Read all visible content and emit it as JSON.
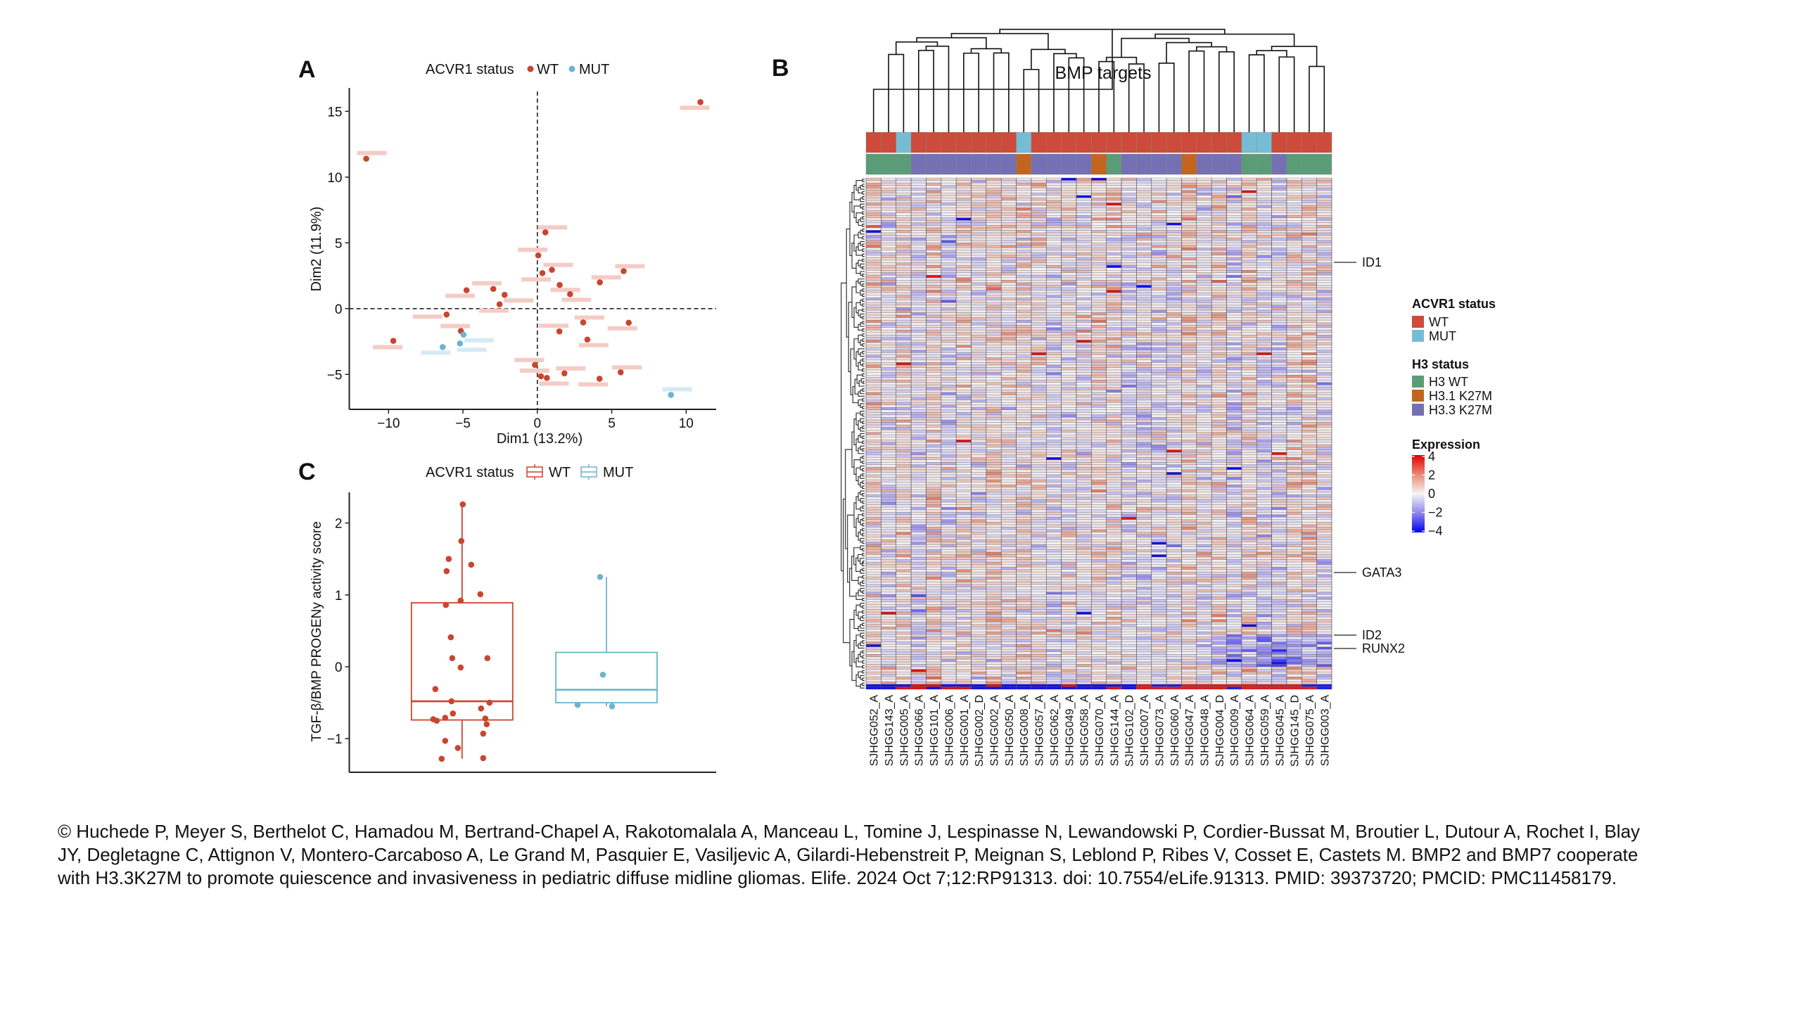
{
  "chart_data": [
    {
      "panel": "A",
      "type": "scatter",
      "xlabel": "Dim1 (13.2%)",
      "ylabel": "Dim2 (11.9%)",
      "xlim": [
        -12.5,
        12
      ],
      "ylim": [
        -7.9,
        16.8
      ],
      "xticks": [
        -10,
        -5,
        0,
        5,
        10
      ],
      "yticks": [
        -5,
        0,
        5,
        10,
        15
      ],
      "reference_lines": {
        "x": 0,
        "y": 0,
        "style": "dashed"
      },
      "legend": {
        "title": "ACVR1 status",
        "entries": [
          "WT",
          "MUT"
        ],
        "position": "top"
      },
      "point_labels": "blurred",
      "series": [
        {
          "name": "WT",
          "color": "#c9452f",
          "points": [
            [
              10.96,
              15.7
            ],
            [
              -11.5,
              11.4
            ],
            [
              0.54,
              5.8
            ],
            [
              0.06,
              4.05
            ],
            [
              0.34,
              2.7
            ],
            [
              0.98,
              2.95
            ],
            [
              5.8,
              2.85
            ],
            [
              4.2,
              2.0
            ],
            [
              1.5,
              1.8
            ],
            [
              2.2,
              1.1
            ],
            [
              -4.76,
              1.4
            ],
            [
              -2.96,
              1.5
            ],
            [
              -2.2,
              1.05
            ],
            [
              -2.54,
              0.33
            ],
            [
              -6.1,
              -0.45
            ],
            [
              -5.14,
              -1.7
            ],
            [
              -9.68,
              -2.45
            ],
            [
              3.08,
              -1.05
            ],
            [
              6.14,
              -1.07
            ],
            [
              1.48,
              -1.73
            ],
            [
              3.36,
              -2.35
            ],
            [
              -0.16,
              -4.28
            ],
            [
              0.24,
              -5.14
            ],
            [
              0.64,
              -5.27
            ],
            [
              1.82,
              -4.92
            ],
            [
              4.18,
              -5.33
            ],
            [
              5.6,
              -4.84
            ]
          ]
        },
        {
          "name": "MUT",
          "color": "#6db3cf",
          "points": [
            [
              -4.96,
              -1.98
            ],
            [
              -5.2,
              -2.65
            ],
            [
              -6.36,
              -2.92
            ],
            [
              8.98,
              -6.56
            ]
          ]
        }
      ]
    },
    {
      "panel": "B",
      "type": "heatmap",
      "title": "BMP targets",
      "columns": [
        "SJHGG052_A",
        "SJHGG143_A",
        "SJHGG005_A",
        "SJHGG066_A",
        "SJHGG101_A",
        "SJHGG006_A",
        "SJHGG001_A",
        "SJHGG002_D",
        "SJHGG002_A",
        "SJHGG050_A",
        "SJHGG008_A",
        "SJHGG057_A",
        "SJHGG062_A",
        "SJHGG049_A",
        "SJHGG058_A",
        "SJHGG070_A",
        "SJHGG144_A",
        "SJHGG102_D",
        "SJHGG007_A",
        "SJHGG073_A",
        "SJHGG060_A",
        "SJHGG047_A",
        "SJHGG048_A",
        "SJHGG004_D",
        "SJHGG009_A",
        "SJHGG064_A",
        "SJHGG059_A",
        "SJHGG045_A",
        "SJHGG145_D",
        "SJHGG075_A",
        "SJHGG003_A"
      ],
      "acvr1_status": [
        "WT",
        "WT",
        "MUT",
        "WT",
        "WT",
        "WT",
        "WT",
        "WT",
        "WT",
        "WT",
        "MUT",
        "WT",
        "WT",
        "WT",
        "WT",
        "WT",
        "WT",
        "WT",
        "WT",
        "WT",
        "WT",
        "WT",
        "WT",
        "WT",
        "WT",
        "MUT",
        "MUT",
        "WT",
        "WT",
        "WT",
        "WT"
      ],
      "h3_status": [
        "H3 WT",
        "H3 WT",
        "H3 WT",
        "H3.3 K27M",
        "H3.3 K27M",
        "H3.3 K27M",
        "H3.3 K27M",
        "H3.3 K27M",
        "H3.3 K27M",
        "H3.3 K27M",
        "H3.1 K27M",
        "H3.3 K27M",
        "H3.3 K27M",
        "H3.3 K27M",
        "H3.3 K27M",
        "H3.1 K27M",
        "H3 WT",
        "H3.3 K27M",
        "H3.3 K27M",
        "H3.3 K27M",
        "H3.3 K27M",
        "H3.1 K27M",
        "H3.3 K27M",
        "H3.3 K27M",
        "H3.3 K27M",
        "H3 WT",
        "H3 WT",
        "H3.3 K27M",
        "H3 WT",
        "H3 WT",
        "H3 WT"
      ],
      "labeled_rows": [
        "ID1",
        "GATA3",
        "ID2",
        "RUNX2"
      ],
      "color_scale": {
        "title": "Expression",
        "min": -4,
        "max": 4,
        "ticks": [
          "4",
          "2",
          "0",
          "−2",
          "−4"
        ],
        "low": "#0000ee",
        "mid": "#f4f2f2",
        "high": "#e00000"
      },
      "dendrograms": {
        "rows": true,
        "columns": true
      }
    },
    {
      "panel": "C",
      "type": "box",
      "ylabel": "TGF-β/BMP PROGENy activity score",
      "yticks": [
        -1,
        0,
        1,
        2
      ],
      "ylim": [
        -1.45,
        2.4
      ],
      "legend": {
        "title": "ACVR1 status",
        "entries": [
          "WT",
          "MUT"
        ],
        "position": "top"
      },
      "groups": [
        {
          "name": "WT",
          "color": "#c9452f",
          "q1": -0.74,
          "median": -0.48,
          "q3": 0.89,
          "whisker_low": -1.28,
          "whisker_high": 2.26,
          "points": [
            2.26,
            1.75,
            1.5,
            1.42,
            1.33,
            1.01,
            0.92,
            0.86,
            0.41,
            0.12,
            0.12,
            -0.01,
            -0.31,
            -0.48,
            -0.5,
            -0.58,
            -0.65,
            -0.71,
            -0.73,
            -0.75,
            -0.72,
            -0.8,
            -0.93,
            -1.03,
            -1.13,
            -1.28,
            -1.27
          ]
        },
        {
          "name": "MUT",
          "color": "#6db3cf",
          "q1": -0.5,
          "median": -0.32,
          "q3": 0.2,
          "whisker_low": -0.55,
          "whisker_high": 1.25,
          "points": [
            1.25,
            -0.11,
            -0.53,
            -0.55
          ]
        }
      ]
    }
  ],
  "panels": {
    "a": "A",
    "b": "B",
    "c": "C"
  },
  "legends": {
    "acvr1_title": "ACVR1 status",
    "wt": "WT",
    "mut": "MUT",
    "h3_title": "H3 status",
    "h3_wt": "H3 WT",
    "h31": "H3.1 K27M",
    "h33": "H3.3 K27M",
    "expr_title": "Expression"
  },
  "colors": {
    "acvr1_wt": "#cc4b3a",
    "acvr1_mut": "#77bcd5",
    "h3_wt": "#5a9c78",
    "h31": "#c1651f",
    "h33": "#7570b3"
  },
  "caption": [
    "©  Huchede P, Meyer S, Berthelot C, Hamadou M, Bertrand-Chapel A, Rakotomalala A, Manceau L, Tomine J, Lespinasse N, Lewandowski P, Cordier-Bussat M, Broutier L, Dutour A, Rochet I, Blay",
    "JY, Degletagne C, Attignon V, Montero-Carcaboso A, Le Grand M, Pasquier E, Vasiljevic A, Gilardi-Hebenstreit P, Meignan S, Leblond P, Ribes V, Cosset E, Castets M. BMP2 and BMP7 cooperate",
    "with H3.3K27M to promote quiescence and invasiveness in pediatric diffuse midline gliomas. Elife. 2024 Oct 7;12:RP91313. doi: 10.7554/eLife.91313. PMID: 39373720; PMCID: PMC11458179."
  ]
}
